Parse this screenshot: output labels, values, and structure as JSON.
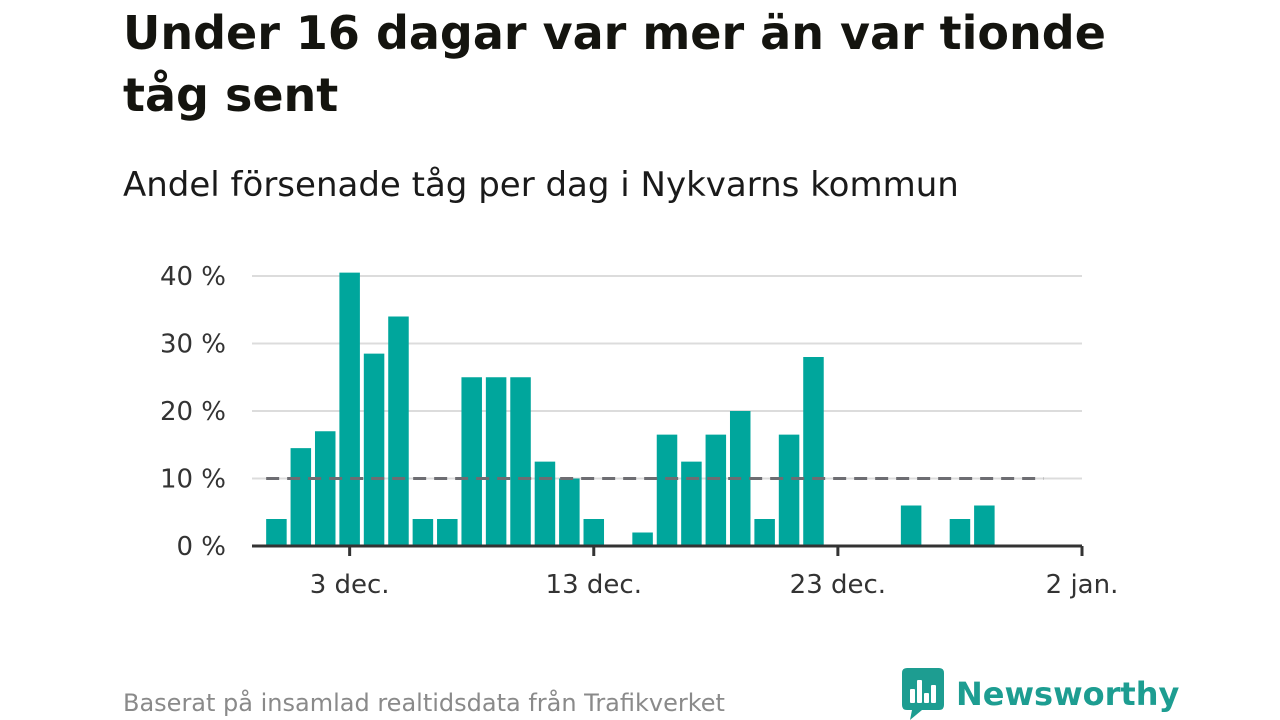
{
  "header": {
    "title": "Under 16 dagar var mer än var tionde tåg sent",
    "subtitle": "Andel försenade tåg per dag i Nykvarns kommun"
  },
  "footer": {
    "source": "Baserat på insamlad realtidsdata från Trafikverket",
    "brand": "Newsworthy",
    "brand_color": "#1d9d91"
  },
  "chart_data": {
    "type": "bar",
    "title": "Under 16 dagar var mer än var tionde tåg sent",
    "subtitle": "Andel försenade tåg per dag i Nykvarns kommun",
    "xlabel": "",
    "ylabel": "",
    "x": [
      "2023-11-30",
      "2023-12-01",
      "2023-12-02",
      "2023-12-03",
      "2023-12-04",
      "2023-12-05",
      "2023-12-06",
      "2023-12-07",
      "2023-12-08",
      "2023-12-09",
      "2023-12-10",
      "2023-12-11",
      "2023-12-12",
      "2023-12-13",
      "2023-12-14",
      "2023-12-15",
      "2023-12-16",
      "2023-12-17",
      "2023-12-18",
      "2023-12-19",
      "2023-12-20",
      "2023-12-21",
      "2023-12-22",
      "2023-12-23",
      "2023-12-24",
      "2023-12-25",
      "2023-12-26",
      "2023-12-27",
      "2023-12-28",
      "2023-12-29",
      "2023-12-30",
      "2023-12-31"
    ],
    "series": [
      {
        "values": [
          4,
          14.5,
          17,
          40.5,
          28.5,
          34,
          4,
          4,
          25,
          25,
          25,
          12.5,
          10,
          4,
          0,
          2,
          16.5,
          12.5,
          16.5,
          20,
          4,
          16.5,
          28,
          0,
          0,
          0,
          6,
          0,
          4,
          6,
          0,
          0
        ],
        "color": "#00a69c"
      }
    ],
    "reference_line": {
      "value": 10,
      "style": "dashed",
      "color": "#6d6d72"
    },
    "x_ticks": [
      {
        "date": "2023-12-03",
        "label": "3 dec."
      },
      {
        "date": "2023-12-13",
        "label": "13 dec."
      },
      {
        "date": "2023-12-23",
        "label": "23 dec."
      },
      {
        "date": "2024-01-02",
        "label": "2 jan."
      }
    ],
    "y_ticks": [
      {
        "value": 0,
        "label": "0 %"
      },
      {
        "value": 10,
        "label": "10 %"
      },
      {
        "value": 20,
        "label": "20 %"
      },
      {
        "value": 30,
        "label": "30 %"
      },
      {
        "value": 40,
        "label": "40 %"
      }
    ],
    "ylim": [
      0,
      40
    ],
    "xlim": [
      "2023-11-29",
      "2024-01-02"
    ],
    "grid": true,
    "legend": "none"
  }
}
